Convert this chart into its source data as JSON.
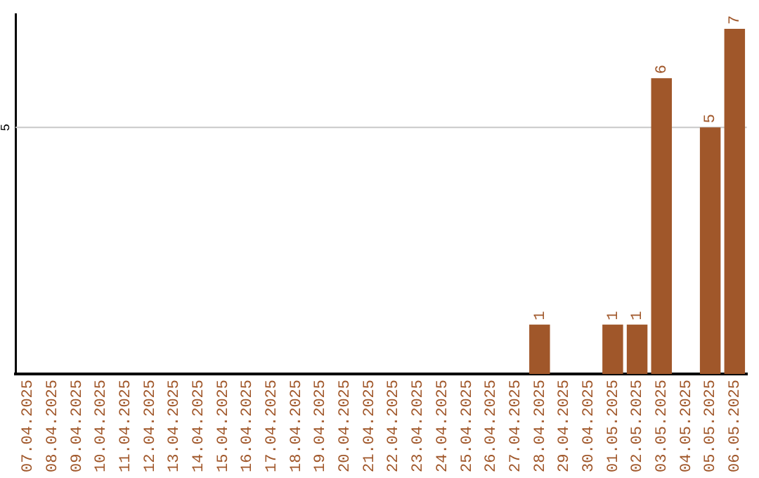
{
  "chart_data": {
    "type": "bar",
    "categories": [
      "07.04.2025",
      "08.04.2025",
      "09.04.2025",
      "10.04.2025",
      "11.04.2025",
      "12.04.2025",
      "13.04.2025",
      "14.04.2025",
      "15.04.2025",
      "16.04.2025",
      "17.04.2025",
      "18.04.2025",
      "19.04.2025",
      "20.04.2025",
      "21.04.2025",
      "22.04.2025",
      "23.04.2025",
      "24.04.2025",
      "25.04.2025",
      "26.04.2025",
      "27.04.2025",
      "28.04.2025",
      "29.04.2025",
      "30.04.2025",
      "01.05.2025",
      "02.05.2025",
      "03.05.2025",
      "04.05.2025",
      "05.05.2025",
      "06.05.2025"
    ],
    "values": [
      null,
      null,
      null,
      null,
      null,
      null,
      null,
      null,
      null,
      null,
      null,
      null,
      null,
      null,
      null,
      null,
      null,
      null,
      null,
      null,
      null,
      1,
      null,
      null,
      1,
      1,
      6,
      null,
      5,
      7
    ],
    "data_labels": true,
    "color": "#a0572a",
    "ylim": [
      0,
      7.3
    ],
    "ref_lines": [
      {
        "axis": "y",
        "value": 5,
        "label": "5",
        "color": "#c8c8c8"
      }
    ]
  }
}
